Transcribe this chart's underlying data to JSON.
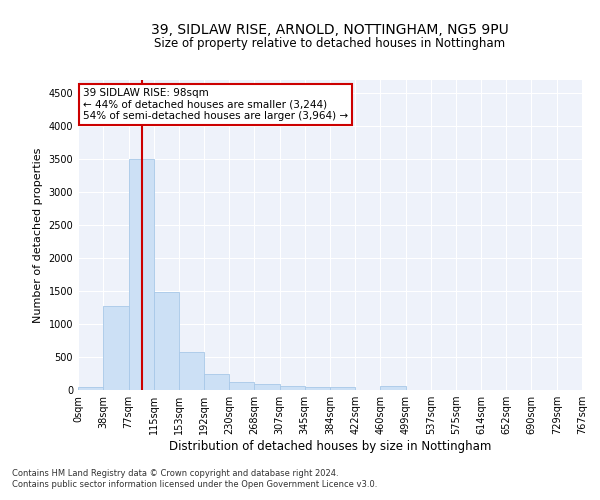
{
  "title": "39, SIDLAW RISE, ARNOLD, NOTTINGHAM, NG5 9PU",
  "subtitle": "Size of property relative to detached houses in Nottingham",
  "xlabel": "Distribution of detached houses by size in Nottingham",
  "ylabel": "Number of detached properties",
  "bar_color": "#cce0f5",
  "bar_edge_color": "#a8c8e8",
  "background_color": "#eef2fa",
  "grid_color": "#ffffff",
  "vline_x": 98,
  "vline_color": "#cc0000",
  "annotation_line1": "39 SIDLAW RISE: 98sqm",
  "annotation_line2": "← 44% of detached houses are smaller (3,244)",
  "annotation_line3": "54% of semi-detached houses are larger (3,964) →",
  "annotation_box_color": "#cc0000",
  "bin_edges": [
    0,
    38,
    77,
    115,
    153,
    192,
    230,
    268,
    307,
    345,
    384,
    422,
    460,
    499,
    537,
    575,
    614,
    652,
    690,
    729,
    767
  ],
  "bin_labels": [
    "0sqm",
    "38sqm",
    "77sqm",
    "115sqm",
    "153sqm",
    "192sqm",
    "230sqm",
    "268sqm",
    "307sqm",
    "345sqm",
    "384sqm",
    "422sqm",
    "460sqm",
    "499sqm",
    "537sqm",
    "575sqm",
    "614sqm",
    "652sqm",
    "690sqm",
    "729sqm",
    "767sqm"
  ],
  "bar_heights": [
    40,
    1280,
    3500,
    1480,
    575,
    240,
    115,
    90,
    60,
    45,
    40,
    0,
    55,
    0,
    0,
    0,
    0,
    0,
    0,
    0
  ],
  "ylim": [
    0,
    4700
  ],
  "yticks": [
    0,
    500,
    1000,
    1500,
    2000,
    2500,
    3000,
    3500,
    4000,
    4500
  ],
  "footer_line1": "Contains HM Land Registry data © Crown copyright and database right 2024.",
  "footer_line2": "Contains public sector information licensed under the Open Government Licence v3.0.",
  "fig_width": 6.0,
  "fig_height": 5.0,
  "title_fontsize": 10,
  "subtitle_fontsize": 8.5,
  "xlabel_fontsize": 8.5,
  "ylabel_fontsize": 8,
  "tick_fontsize": 7,
  "annotation_fontsize": 7.5,
  "footer_fontsize": 6
}
